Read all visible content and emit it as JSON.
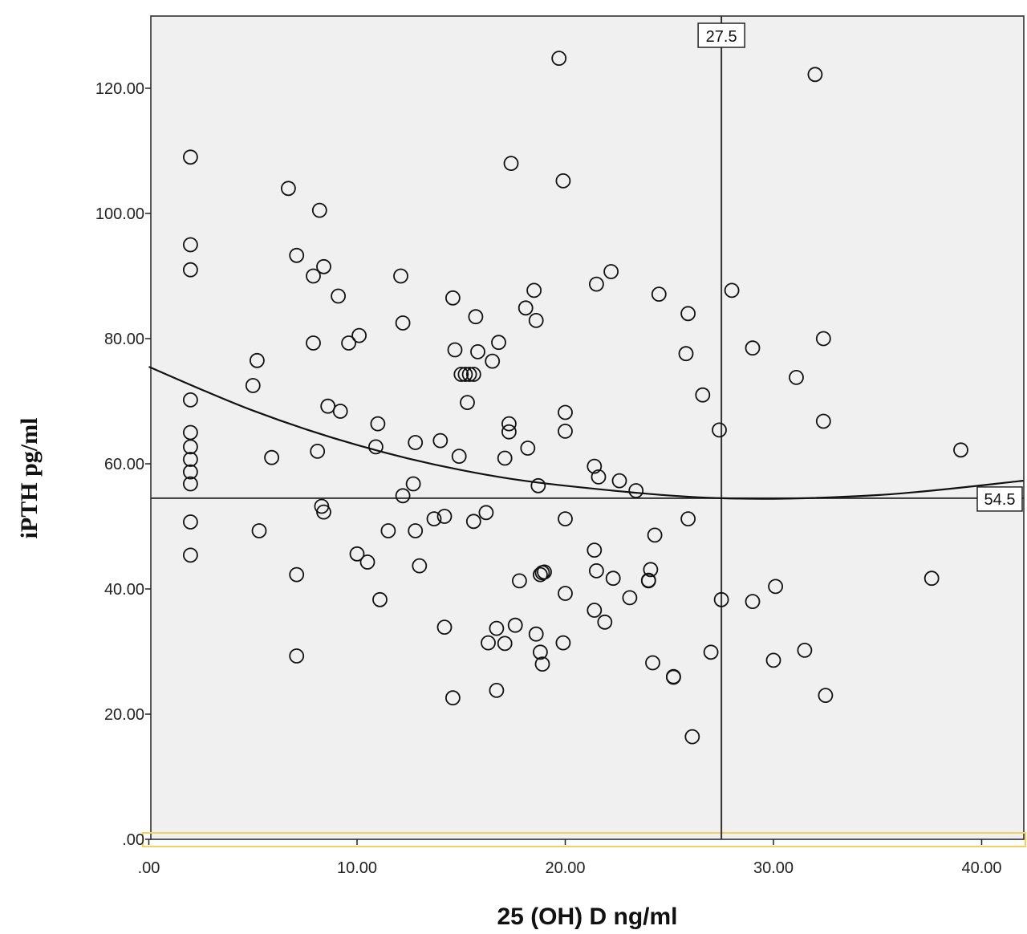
{
  "chart_data": {
    "type": "scatter",
    "xlabel": "25 (OH) D ng/ml",
    "ylabel": "iPTH pg/ml",
    "xlim": [
      0,
      42
    ],
    "ylim": [
      0,
      132
    ],
    "x_ticks": [
      ".00",
      "10.00",
      "20.00",
      "30.00",
      "40.00"
    ],
    "x_tick_values": [
      0,
      10,
      20,
      30,
      40
    ],
    "y_ticks": [
      ".00",
      "20.00",
      "40.00",
      "60.00",
      "80.00",
      "100.00",
      "120.00"
    ],
    "y_tick_values": [
      0,
      20,
      40,
      60,
      80,
      100,
      120
    ],
    "grid": false,
    "plot_background": "#f0f0f0",
    "marker_color": "#111111",
    "baseline_highlight_color": "#f5d060",
    "reference_lines": {
      "vertical": {
        "x": 27.5,
        "label": "27.5"
      },
      "horizontal": {
        "y": 54.5,
        "label": "54.5"
      }
    },
    "fit_curve": {
      "type": "quadratic",
      "points": [
        [
          0,
          75.5
        ],
        [
          5,
          68.5
        ],
        [
          10,
          63.0
        ],
        [
          15,
          59.0
        ],
        [
          20,
          56.5
        ],
        [
          27.5,
          54.5
        ],
        [
          35,
          55.0
        ],
        [
          42,
          57.3
        ]
      ]
    },
    "points": [
      [
        2,
        109
      ],
      [
        2,
        95
      ],
      [
        2,
        91
      ],
      [
        2,
        70.2
      ],
      [
        2,
        65
      ],
      [
        2,
        62.7
      ],
      [
        2,
        60.7
      ],
      [
        2,
        58.7
      ],
      [
        2,
        56.8
      ],
      [
        2,
        50.7
      ],
      [
        2,
        45.4
      ],
      [
        5,
        72.5
      ],
      [
        5.2,
        76.5
      ],
      [
        5.3,
        49.3
      ],
      [
        5.9,
        61
      ],
      [
        6.7,
        104
      ],
      [
        7.1,
        93.3
      ],
      [
        7.1,
        42.3
      ],
      [
        7.1,
        29.3
      ],
      [
        7.9,
        90
      ],
      [
        7.9,
        79.3
      ],
      [
        8.1,
        62
      ],
      [
        8.2,
        100.5
      ],
      [
        8.3,
        53.2
      ],
      [
        8.4,
        52.3
      ],
      [
        8.4,
        91.5
      ],
      [
        8.6,
        69.2
      ],
      [
        9.1,
        86.8
      ],
      [
        9.2,
        68.4
      ],
      [
        9.6,
        79.3
      ],
      [
        10,
        45.6
      ],
      [
        10.1,
        80.5
      ],
      [
        10.5,
        44.3
      ],
      [
        10.9,
        62.7
      ],
      [
        11,
        66.4
      ],
      [
        11.1,
        38.3
      ],
      [
        11.5,
        49.3
      ],
      [
        12.1,
        90
      ],
      [
        12.2,
        82.5
      ],
      [
        12.2,
        54.9
      ],
      [
        12.7,
        56.8
      ],
      [
        12.8,
        63.4
      ],
      [
        12.8,
        49.3
      ],
      [
        13,
        43.7
      ],
      [
        13.7,
        51.2
      ],
      [
        14,
        63.7
      ],
      [
        14.2,
        51.6
      ],
      [
        14.2,
        33.9
      ],
      [
        14.6,
        86.5
      ],
      [
        14.6,
        22.6
      ],
      [
        14.7,
        78.2
      ],
      [
        14.9,
        61.2
      ],
      [
        15,
        74.3
      ],
      [
        15.2,
        74.3
      ],
      [
        15.3,
        69.8
      ],
      [
        15.4,
        74.3
      ],
      [
        15.6,
        74.3
      ],
      [
        15.6,
        50.8
      ],
      [
        15.7,
        83.5
      ],
      [
        15.8,
        77.9
      ],
      [
        16.2,
        52.2
      ],
      [
        16.3,
        31.4
      ],
      [
        16.5,
        76.4
      ],
      [
        16.7,
        33.7
      ],
      [
        16.7,
        23.8
      ],
      [
        16.8,
        79.4
      ],
      [
        17.1,
        31.3
      ],
      [
        17.1,
        60.9
      ],
      [
        17.3,
        65.1
      ],
      [
        17.3,
        66.4
      ],
      [
        17.4,
        108
      ],
      [
        17.6,
        34.2
      ],
      [
        17.8,
        41.3
      ],
      [
        18.1,
        84.9
      ],
      [
        18.2,
        62.5
      ],
      [
        18.5,
        87.7
      ],
      [
        18.6,
        82.9
      ],
      [
        18.6,
        32.8
      ],
      [
        18.7,
        56.5
      ],
      [
        18.8,
        29.9
      ],
      [
        18.8,
        42.3
      ],
      [
        18.9,
        42.6
      ],
      [
        18.9,
        28
      ],
      [
        19,
        42.7
      ],
      [
        19.7,
        124.8
      ],
      [
        19.9,
        105.2
      ],
      [
        19.9,
        31.4
      ],
      [
        20,
        68.2
      ],
      [
        20,
        65.2
      ],
      [
        20,
        51.2
      ],
      [
        20,
        39.3
      ],
      [
        21.4,
        59.6
      ],
      [
        21.4,
        46.2
      ],
      [
        21.4,
        36.6
      ],
      [
        21.5,
        42.9
      ],
      [
        21.5,
        88.7
      ],
      [
        21.6,
        57.9
      ],
      [
        21.9,
        34.7
      ],
      [
        22.2,
        90.7
      ],
      [
        22.3,
        41.7
      ],
      [
        22.6,
        57.3
      ],
      [
        23.1,
        38.6
      ],
      [
        23.4,
        55.7
      ],
      [
        24,
        41.3
      ],
      [
        24,
        41.4
      ],
      [
        24.1,
        43.1
      ],
      [
        24.2,
        28.2
      ],
      [
        24.3,
        48.6
      ],
      [
        24.5,
        87.1
      ],
      [
        25.2,
        25.9
      ],
      [
        25.2,
        26
      ],
      [
        25.8,
        77.6
      ],
      [
        25.9,
        84
      ],
      [
        25.9,
        51.2
      ],
      [
        26.1,
        16.4
      ],
      [
        26.6,
        71
      ],
      [
        27,
        29.9
      ],
      [
        27.4,
        65.4
      ],
      [
        27.5,
        38.3
      ],
      [
        28,
        87.7
      ],
      [
        29,
        78.5
      ],
      [
        29,
        38
      ],
      [
        30,
        28.6
      ],
      [
        30.1,
        40.4
      ],
      [
        31.1,
        73.8
      ],
      [
        31.5,
        30.2
      ],
      [
        32,
        122.2
      ],
      [
        32.4,
        80
      ],
      [
        32.4,
        66.8
      ],
      [
        32.5,
        23
      ],
      [
        37.6,
        41.7
      ],
      [
        39,
        62.2
      ]
    ]
  }
}
